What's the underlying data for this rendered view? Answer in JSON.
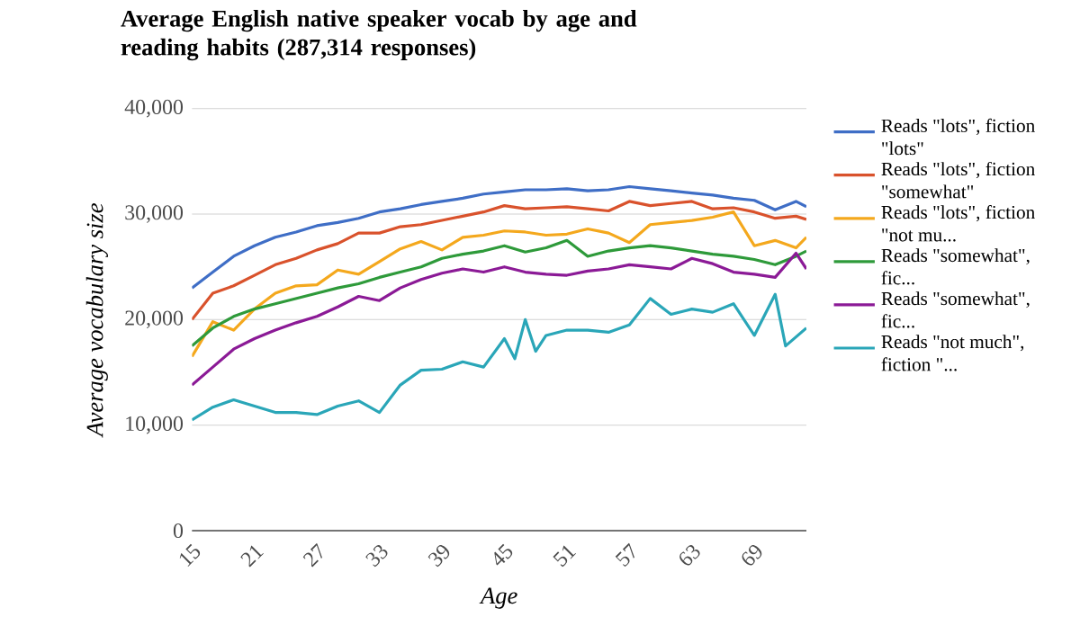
{
  "chart_data": {
    "type": "line",
    "title": "Average English native speaker vocab by age and reading habits (287,314 responses)",
    "xlabel": "Age",
    "ylabel": "Average vocabulary size",
    "xlim": [
      15,
      74
    ],
    "ylim": [
      0,
      40000
    ],
    "xticks": [
      15,
      21,
      27,
      33,
      39,
      45,
      51,
      57,
      63,
      69
    ],
    "yticks": [
      {
        "value": 0,
        "label": "0"
      },
      {
        "value": 10000,
        "label": "10,000"
      },
      {
        "value": 20000,
        "label": "20,000"
      },
      {
        "value": 30000,
        "label": "30,000"
      },
      {
        "value": 40000,
        "label": "40,000"
      }
    ],
    "grid": "y",
    "legend": "right",
    "series": [
      {
        "name": "Reads \"lots\", fiction \"lots\"",
        "color": "#3f6ec6",
        "x": [
          15,
          17,
          19,
          21,
          23,
          25,
          27,
          29,
          31,
          33,
          35,
          37,
          39,
          41,
          43,
          45,
          47,
          49,
          51,
          53,
          55,
          57,
          59,
          61,
          63,
          65,
          67,
          69,
          71,
          73,
          74
        ],
        "values": [
          23000,
          24500,
          26000,
          27000,
          27800,
          28300,
          28900,
          29200,
          29600,
          30200,
          30500,
          30900,
          31200,
          31500,
          31900,
          32100,
          32300,
          32300,
          32400,
          32200,
          32300,
          32600,
          32400,
          32200,
          32000,
          31800,
          31500,
          31300,
          30400,
          31200,
          30700
        ]
      },
      {
        "name": "Reads \"lots\", fiction \"somewhat\"",
        "color": "#d9522c",
        "x": [
          15,
          17,
          19,
          21,
          23,
          25,
          27,
          29,
          31,
          33,
          35,
          37,
          39,
          41,
          43,
          45,
          47,
          49,
          51,
          53,
          55,
          57,
          59,
          61,
          63,
          65,
          67,
          69,
          71,
          73,
          74
        ],
        "values": [
          20000,
          22500,
          23200,
          24200,
          25200,
          25800,
          26600,
          27200,
          28200,
          28200,
          28800,
          29000,
          29400,
          29800,
          30200,
          30800,
          30500,
          30600,
          30700,
          30500,
          30300,
          31200,
          30800,
          31000,
          31200,
          30500,
          30600,
          30200,
          29600,
          29800,
          29500
        ]
      },
      {
        "name": "Reads \"lots\", fiction \"not mu...",
        "color": "#f4a81d",
        "x": [
          15,
          17,
          19,
          21,
          23,
          25,
          27,
          29,
          31,
          33,
          35,
          37,
          39,
          41,
          43,
          45,
          47,
          49,
          51,
          53,
          55,
          57,
          59,
          61,
          63,
          65,
          67,
          69,
          71,
          73,
          74
        ],
        "values": [
          16500,
          19800,
          19000,
          21000,
          22500,
          23200,
          23300,
          24700,
          24300,
          25500,
          26700,
          27400,
          26600,
          27800,
          28000,
          28400,
          28300,
          28000,
          28100,
          28600,
          28200,
          27300,
          29000,
          29200,
          29400,
          29700,
          30200,
          27000,
          27500,
          26800,
          27800
        ]
      },
      {
        "name": "Reads \"somewhat\", fic...",
        "color": "#2e9a3a",
        "x": [
          15,
          17,
          19,
          21,
          23,
          25,
          27,
          29,
          31,
          33,
          35,
          37,
          39,
          41,
          43,
          45,
          47,
          49,
          51,
          53,
          55,
          57,
          59,
          61,
          63,
          65,
          67,
          69,
          71,
          73,
          74
        ],
        "values": [
          17500,
          19200,
          20300,
          21000,
          21500,
          22000,
          22500,
          23000,
          23400,
          24000,
          24500,
          25000,
          25800,
          26200,
          26500,
          27000,
          26400,
          26800,
          27500,
          26000,
          26500,
          26800,
          27000,
          26800,
          26500,
          26200,
          26000,
          25700,
          25200,
          26000,
          26500
        ]
      },
      {
        "name": "Reads \"somewhat\", fic...",
        "color": "#8b1a96",
        "x": [
          15,
          17,
          19,
          21,
          23,
          25,
          27,
          29,
          31,
          33,
          35,
          37,
          39,
          41,
          43,
          45,
          47,
          49,
          51,
          53,
          55,
          57,
          59,
          61,
          63,
          65,
          67,
          69,
          71,
          73,
          74
        ],
        "values": [
          13800,
          15500,
          17200,
          18200,
          19000,
          19700,
          20300,
          21200,
          22200,
          21800,
          23000,
          23800,
          24400,
          24800,
          24500,
          25000,
          24500,
          24300,
          24200,
          24600,
          24800,
          25200,
          25000,
          24800,
          25800,
          25300,
          24500,
          24300,
          24000,
          26300,
          24800
        ]
      },
      {
        "name": "Reads \"not much\", fiction \"...",
        "color": "#2aa6b8",
        "x": [
          15,
          17,
          19,
          21,
          23,
          25,
          27,
          29,
          31,
          33,
          35,
          37,
          39,
          41,
          43,
          45,
          46,
          47,
          48,
          49,
          51,
          53,
          55,
          57,
          59,
          61,
          63,
          65,
          67,
          69,
          71,
          72,
          74
        ],
        "values": [
          10500,
          11700,
          12400,
          11800,
          11200,
          11200,
          11000,
          11800,
          12300,
          11200,
          13800,
          15200,
          15300,
          16000,
          15500,
          18200,
          16300,
          20000,
          17000,
          18500,
          19000,
          19000,
          18800,
          19500,
          22000,
          20500,
          21000,
          20700,
          21500,
          18500,
          22400,
          17500,
          19200
        ]
      }
    ]
  }
}
